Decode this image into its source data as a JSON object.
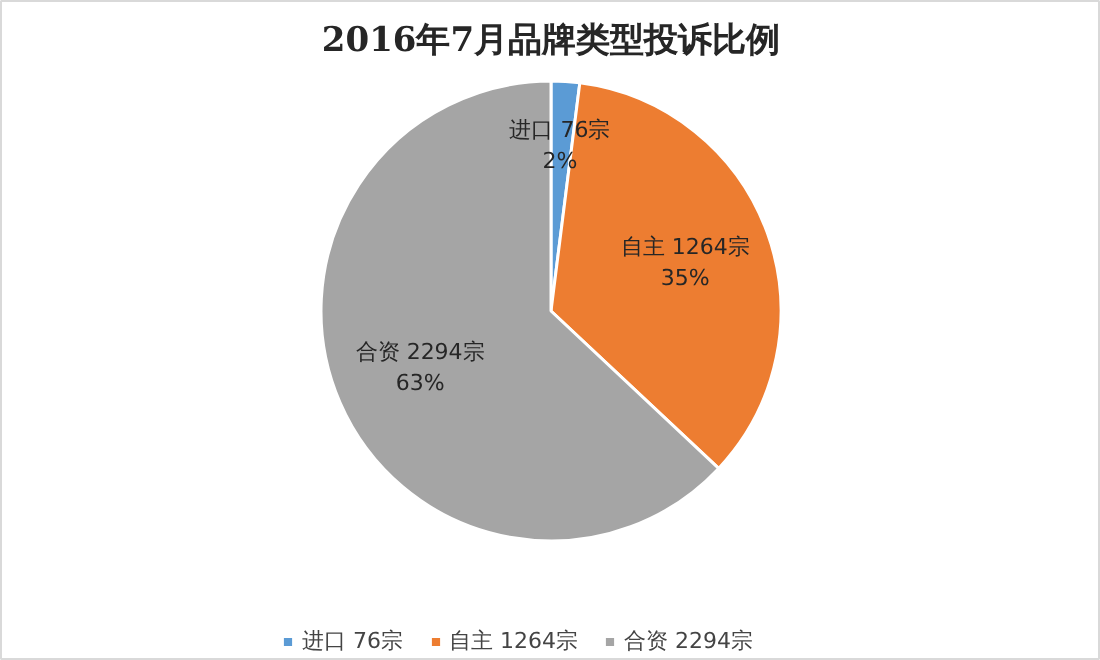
{
  "chart_data": {
    "type": "pie",
    "title": "2016年7月品牌类型投诉比例",
    "categories": [
      "进口 76宗",
      "自主 1264宗",
      "合资 2294宗"
    ],
    "values": [
      2,
      35,
      63
    ],
    "colors": [
      "#5b9bd5",
      "#ed7d31",
      "#a5a5a5"
    ],
    "value_labels": [
      "2%",
      "35%",
      "63%"
    ],
    "legend": "bottom"
  }
}
